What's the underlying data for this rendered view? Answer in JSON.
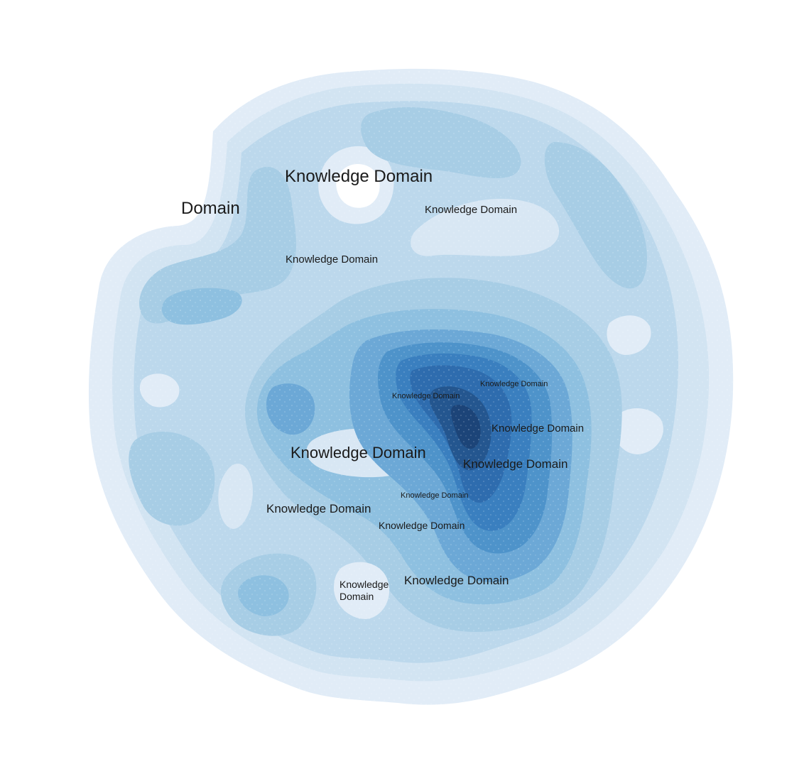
{
  "colors": {
    "background": "#ffffff",
    "levels": [
      "#e1ecf7",
      "#d2e4f2",
      "#bcd8ec",
      "#a7cde5",
      "#8ec0e0",
      "#6ca8d6",
      "#4e93ca",
      "#3a7fbf",
      "#2e6cae",
      "#24568f",
      "#1c4478"
    ],
    "label_text": "#1a1a1a"
  },
  "labels": [
    {
      "id": "domain-top-left",
      "text": "Domain"
    },
    {
      "id": "kd-top-large",
      "text": "Knowledge Domain"
    },
    {
      "id": "kd-top-right",
      "text": "Knowledge Domain"
    },
    {
      "id": "kd-upper-left",
      "text": "Knowledge Domain"
    },
    {
      "id": "kd-center-small-a",
      "text": "Knowledge Domain"
    },
    {
      "id": "kd-center-small-b",
      "text": "Knowledge Domain"
    },
    {
      "id": "kd-right-mid",
      "text": "Knowledge Domain"
    },
    {
      "id": "kd-center-large",
      "text": "Knowledge Domain"
    },
    {
      "id": "kd-right-lower",
      "text": "Knowledge Domain"
    },
    {
      "id": "kd-center-tiny",
      "text": "Knowledge Domain"
    },
    {
      "id": "kd-left-lower",
      "text": "Knowledge Domain"
    },
    {
      "id": "kd-center-lower",
      "text": "Knowledge Domain"
    },
    {
      "id": "kd-bottom-right",
      "text": "Knowledge Domain"
    },
    {
      "id": "kd-bottom-wrapped-1",
      "text": "Knowledge"
    },
    {
      "id": "kd-bottom-wrapped-2",
      "text": "Domain"
    }
  ]
}
